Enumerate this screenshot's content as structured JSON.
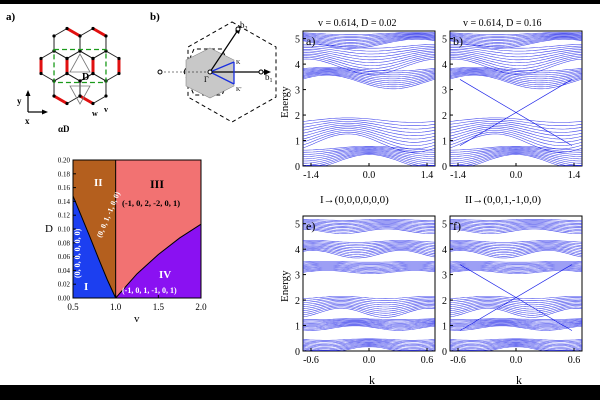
{
  "figure": {
    "panel_a_label": "a)",
    "panel_b_label": "b)",
    "lattice": {
      "label_D": "D",
      "label_aD": "αD",
      "label_w": "w",
      "label_v": "v",
      "axis_y": "y",
      "axis_x": "x"
    },
    "bz": {
      "label_b1": "b",
      "sub_b1": "1",
      "label_b2": "b",
      "sub_b2": "2",
      "label_gamma": "Γ",
      "label_K": "K",
      "label_Kp": "K'"
    },
    "bands": {
      "top_left_title": "v = 0.614, D = 0.02",
      "top_right_title": "v = 0.614, D = 0.16",
      "top_left_caption": "I→(0,0,0,0,0,0)",
      "top_right_caption": "II→(0,0,1,-1,0,0)",
      "panel_labels": [
        "a)",
        "b)",
        "e)",
        "f)"
      ],
      "ylabel": "Energy",
      "xlabel": "k",
      "top_xticks": [
        "-1.4",
        "0.0",
        "1.4"
      ],
      "bottom_xticks": [
        "-0.6",
        "0.0",
        "0.6"
      ],
      "yticks": [
        "0",
        "1",
        "2",
        "3",
        "4",
        "5"
      ]
    }
  },
  "chart_data": [
    {
      "type": "area",
      "title": "",
      "xlabel": "v",
      "ylabel": "D",
      "xlim": [
        0.5,
        2.0
      ],
      "ylim": [
        0.0,
        0.2
      ],
      "xticks": [
        "0.5",
        "1.0",
        "1.5",
        "2.0"
      ],
      "yticks": [
        "0.00",
        "0.02",
        "0.04",
        "0.06",
        "0.08",
        "0.10",
        "0.12",
        "0.14",
        "0.16",
        "0.18",
        "0.20"
      ],
      "regions": [
        {
          "id": "I",
          "label": "I",
          "invariant": "(0, 0, 0, 0, 0, 0)",
          "color": "#1c3ff0"
        },
        {
          "id": "II",
          "label": "II",
          "invariant": "(0, 0, 1, -1, 0, 0)",
          "color": "#b45f1e"
        },
        {
          "id": "III",
          "label": "III",
          "invariant": "(-1, 0, 2, -2, 0, 1)",
          "color": "#f27272"
        },
        {
          "id": "IV",
          "label": "IV",
          "invariant": "(-1, 0, 1, -1, 0, 1)",
          "color": "#8a11f2"
        }
      ],
      "boundary_I_II": {
        "v": [
          0.5,
          0.6,
          0.7,
          0.8,
          0.9,
          1.0
        ],
        "D": [
          0.148,
          0.118,
          0.088,
          0.057,
          0.027,
          0.0
        ]
      },
      "boundary_III_IV": {
        "v": [
          1.0,
          1.25,
          1.5,
          1.75,
          2.0
        ],
        "D": [
          0.0,
          0.035,
          0.063,
          0.087,
          0.107
        ]
      },
      "boundary_vertical_v": 1.0
    }
  ]
}
